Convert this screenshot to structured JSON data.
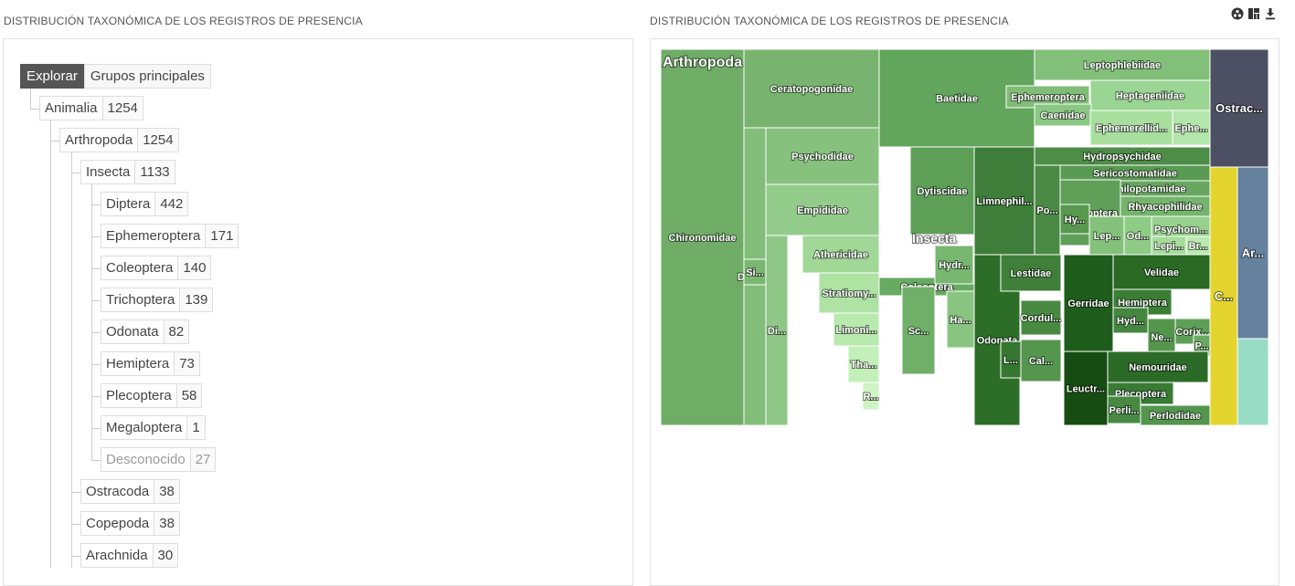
{
  "left_panel": {
    "title": "DISTRIBUCIÓN TAXONÓMICA DE LOS REGISTROS DE PRESENCIA"
  },
  "right_panel": {
    "title": "DISTRIBUCIÓN TAXONÓMICA DE LOS REGISTROS DE PRESENCIA"
  },
  "tree": {
    "buttons": {
      "explore": "Explorar",
      "groups": "Grupos principales"
    },
    "nodes": [
      {
        "name": "Animalia",
        "count": "1254"
      },
      {
        "name": "Arthropoda",
        "count": "1254"
      },
      {
        "name": "Insecta",
        "count": "1133"
      },
      {
        "name": "Diptera",
        "count": "442"
      },
      {
        "name": "Ephemeroptera",
        "count": "171"
      },
      {
        "name": "Coleoptera",
        "count": "140"
      },
      {
        "name": "Trichoptera",
        "count": "139"
      },
      {
        "name": "Odonata",
        "count": "82"
      },
      {
        "name": "Hemiptera",
        "count": "73"
      },
      {
        "name": "Plecoptera",
        "count": "58"
      },
      {
        "name": "Megaloptera",
        "count": "1"
      },
      {
        "name": "Desconocido",
        "count": "27"
      },
      {
        "name": "Ostracoda",
        "count": "38"
      },
      {
        "name": "Copepoda",
        "count": "38"
      },
      {
        "name": "Arachnida",
        "count": "30"
      }
    ]
  },
  "toolbar": {
    "icons": [
      "options-icon",
      "treemap-view-icon",
      "download-icon"
    ]
  },
  "treemap": {
    "parent_labels": [
      "Arthropoda",
      "Insecta"
    ],
    "cells": [
      {
        "label": "Chironomidae",
        "color": "#6fad67"
      },
      {
        "label": "Ceratopogonidae",
        "color": "#78b46f"
      },
      {
        "label": "Psychodidae",
        "color": "#86c17d"
      },
      {
        "label": "Diptera",
        "color": "#82bd79"
      },
      {
        "label": "Si...",
        "color": "#7ab872"
      },
      {
        "label": "Empididae",
        "color": "#93cc8a"
      },
      {
        "label": "Di...",
        "color": "#8ec786"
      },
      {
        "label": "Athericidae",
        "color": "#a1d897"
      },
      {
        "label": "Stratiomy...",
        "color": "#aee3a4"
      },
      {
        "label": "Limoni...",
        "color": "#b8eaae"
      },
      {
        "label": "Tha...",
        "color": "#c2f0b8"
      },
      {
        "label": "R...",
        "color": "#cdf4c2"
      },
      {
        "label": "Baetidae",
        "color": "#62a55d"
      },
      {
        "label": "Ephemeroptera",
        "color": "#80bd77"
      },
      {
        "label": "Leptophlebiidae",
        "color": "#82c07a"
      },
      {
        "label": "Heptageniidae",
        "color": "#9bd593"
      },
      {
        "label": "Caenidae",
        "color": "#8ac782"
      },
      {
        "label": "Ephemerellid...",
        "color": "#a8df9f"
      },
      {
        "label": "Ephe...",
        "color": "#b3e6aa"
      },
      {
        "label": "Dytiscidae",
        "color": "#5e9f58"
      },
      {
        "label": "Coleoptera",
        "color": "#67aa61"
      },
      {
        "label": "Sc...",
        "color": "#6faf68"
      },
      {
        "label": "Hydr...",
        "color": "#78b770"
      },
      {
        "label": "Ha...",
        "color": "#89c580"
      },
      {
        "label": "Limnephil...",
        "color": "#3f7e3a"
      },
      {
        "label": "Hydropsychidae",
        "color": "#4d8d47"
      },
      {
        "label": "Sericostomatidae",
        "color": "#5a9b53"
      },
      {
        "label": "Philopotamidae",
        "color": "#67a760"
      },
      {
        "label": "Po...",
        "color": "#4b8a45"
      },
      {
        "label": "Trichoptera",
        "color": "#5f9f58"
      },
      {
        "label": "Rhyacophilidae",
        "color": "#75b46d"
      },
      {
        "label": "Hy...",
        "color": "#58984f"
      },
      {
        "label": "Lep...",
        "color": "#84c27b"
      },
      {
        "label": "Od...",
        "color": "#8ecb85"
      },
      {
        "label": "Psychom...",
        "color": "#98d08e"
      },
      {
        "label": "Lepi...",
        "color": "#a6dc9c"
      },
      {
        "label": "Br...",
        "color": "#b9eaae"
      },
      {
        "label": "Odonata",
        "color": "#2c6e28"
      },
      {
        "label": "Lestidae",
        "color": "#3f7f39"
      },
      {
        "label": "L...",
        "color": "#357631"
      },
      {
        "label": "Cordul...",
        "color": "#498a42"
      },
      {
        "label": "Cal...",
        "color": "#55964e"
      },
      {
        "label": "Gerridae",
        "color": "#1f5d1c"
      },
      {
        "label": "Velidae",
        "color": "#2a6a25"
      },
      {
        "label": "Hemiptera",
        "color": "#3d7e37"
      },
      {
        "label": "Hyd...",
        "color": "#458640"
      },
      {
        "label": "Ne...",
        "color": "#54954c"
      },
      {
        "label": "Corix...",
        "color": "#5e9f57"
      },
      {
        "label": "P...",
        "color": "#6aa963"
      },
      {
        "label": "Leuctr...",
        "color": "#164c12"
      },
      {
        "label": "Nemouridae",
        "color": "#2b6b27"
      },
      {
        "label": "Plecoptera",
        "color": "#397b34"
      },
      {
        "label": "Perli...",
        "color": "#478943"
      },
      {
        "label": "Perlodidae",
        "color": "#54964e"
      },
      {
        "label": "Ostrac...",
        "color": "#4d4f63"
      },
      {
        "label": "C...",
        "color": "#e4d42e"
      },
      {
        "label": "Ar...",
        "color": "#66819e"
      },
      {
        "label": "",
        "color": "#98dcc6"
      }
    ]
  }
}
